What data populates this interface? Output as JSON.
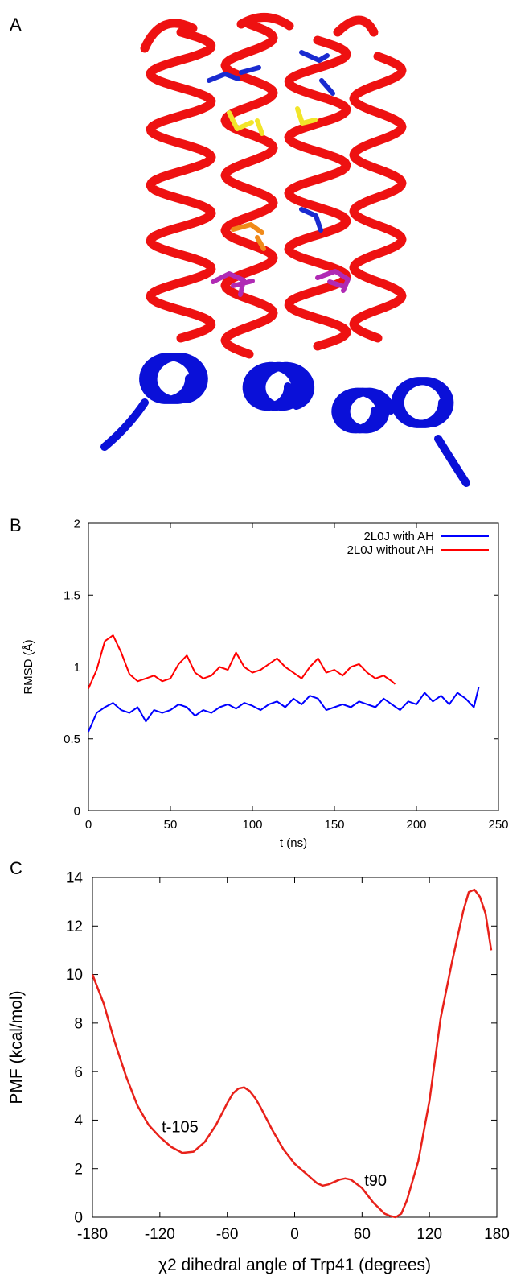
{
  "panels": {
    "a": {
      "letter": "A"
    },
    "b": {
      "letter": "B"
    },
    "c": {
      "letter": "C"
    }
  },
  "protein_image": {
    "colors": {
      "helix": "#ee1111",
      "terminal_helix": "#0a10d8",
      "side_chain_blue": "#1a2bd0",
      "side_chain_yellow": "#f2e52a",
      "side_chain_orange": "#f08a1a",
      "side_chain_magenta": "#b02ab4"
    }
  },
  "chart_data": [
    {
      "type": "line",
      "xlabel": "t (ns)",
      "ylabel": "RMSD (Å)",
      "xlim": [
        0,
        250
      ],
      "ylim": [
        0,
        2
      ],
      "x_ticks": [
        "0",
        "50",
        "100",
        "150",
        "200",
        "250"
      ],
      "y_ticks": [
        "0",
        "0.5",
        "1",
        "1.5",
        "2"
      ],
      "legend_position": "top-right",
      "grid": false,
      "series": [
        {
          "name": "2L0J with AH",
          "color": "#0000ff",
          "x": [
            0,
            5,
            10,
            15,
            20,
            25,
            30,
            35,
            40,
            45,
            50,
            55,
            60,
            65,
            70,
            75,
            80,
            85,
            90,
            95,
            100,
            105,
            110,
            115,
            120,
            125,
            130,
            135,
            140,
            145,
            150,
            155,
            160,
            165,
            170,
            175,
            180,
            185,
            190,
            195,
            200,
            205,
            210,
            215,
            220,
            225,
            230,
            235,
            238
          ],
          "y": [
            0.55,
            0.68,
            0.72,
            0.75,
            0.7,
            0.68,
            0.72,
            0.62,
            0.7,
            0.68,
            0.7,
            0.74,
            0.72,
            0.66,
            0.7,
            0.68,
            0.72,
            0.74,
            0.71,
            0.75,
            0.73,
            0.7,
            0.74,
            0.76,
            0.72,
            0.78,
            0.74,
            0.8,
            0.78,
            0.7,
            0.72,
            0.74,
            0.72,
            0.76,
            0.74,
            0.72,
            0.78,
            0.74,
            0.7,
            0.76,
            0.74,
            0.82,
            0.76,
            0.8,
            0.74,
            0.82,
            0.78,
            0.72,
            0.86
          ]
        },
        {
          "name": "2L0J without AH",
          "color": "#ff0000",
          "x": [
            0,
            5,
            10,
            15,
            20,
            25,
            30,
            35,
            40,
            45,
            50,
            55,
            60,
            65,
            70,
            75,
            80,
            85,
            90,
            95,
            100,
            105,
            110,
            115,
            120,
            125,
            130,
            135,
            140,
            145,
            150,
            155,
            160,
            165,
            170,
            175,
            180,
            185,
            187
          ],
          "y": [
            0.85,
            0.98,
            1.18,
            1.22,
            1.1,
            0.95,
            0.9,
            0.92,
            0.94,
            0.9,
            0.92,
            1.02,
            1.08,
            0.96,
            0.92,
            0.94,
            1.0,
            0.98,
            1.1,
            1.0,
            0.96,
            0.98,
            1.02,
            1.06,
            1.0,
            0.96,
            0.92,
            1.0,
            1.06,
            0.96,
            0.98,
            0.94,
            1.0,
            1.02,
            0.96,
            0.92,
            0.94,
            0.9,
            0.88
          ]
        }
      ]
    },
    {
      "type": "line",
      "xlabel": "χ2 dihedral angle of Trp41 (degrees)",
      "ylabel": "PMF (kcal/mol)",
      "xlim": [
        -180,
        180
      ],
      "ylim": [
        0,
        14
      ],
      "x_ticks": [
        "-180",
        "-120",
        "-60",
        "0",
        "60",
        "120",
        "180"
      ],
      "y_ticks": [
        "0",
        "2",
        "4",
        "6",
        "8",
        "10",
        "12",
        "14"
      ],
      "grid": false,
      "annotations": [
        {
          "text": "t-105",
          "x": -102,
          "y": 3.5
        },
        {
          "text": "t90",
          "x": 72,
          "y": 1.3
        }
      ],
      "series": [
        {
          "color": "#e8211a",
          "x": [
            -180,
            -170,
            -160,
            -150,
            -140,
            -130,
            -120,
            -110,
            -100,
            -90,
            -80,
            -70,
            -60,
            -55,
            -50,
            -45,
            -40,
            -35,
            -30,
            -20,
            -10,
            0,
            10,
            20,
            25,
            30,
            40,
            45,
            50,
            60,
            70,
            80,
            85,
            90,
            95,
            100,
            110,
            120,
            130,
            140,
            150,
            155,
            160,
            165,
            170,
            175
          ],
          "y": [
            10.0,
            8.8,
            7.2,
            5.8,
            4.6,
            3.8,
            3.3,
            2.9,
            2.65,
            2.7,
            3.1,
            3.8,
            4.7,
            5.1,
            5.3,
            5.35,
            5.2,
            4.9,
            4.5,
            3.6,
            2.8,
            2.2,
            1.8,
            1.4,
            1.3,
            1.35,
            1.55,
            1.6,
            1.55,
            1.2,
            0.6,
            0.15,
            0.05,
            0.0,
            0.15,
            0.7,
            2.3,
            4.8,
            8.2,
            10.5,
            12.6,
            13.4,
            13.5,
            13.2,
            12.5,
            11.0
          ]
        }
      ]
    }
  ]
}
